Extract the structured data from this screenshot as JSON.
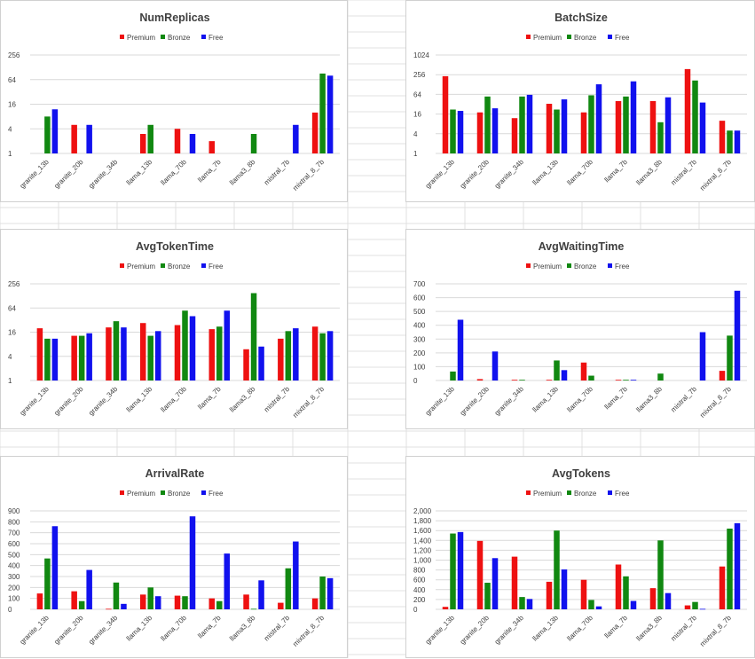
{
  "colors": {
    "premium": "#ee1111",
    "bronze": "#118811",
    "free": "#1111ee",
    "grid": "#d9d9d9",
    "text": "#404040"
  },
  "chart_data": [
    {
      "type": "bar",
      "title": "NumReplicas",
      "scale": "log2",
      "categories": [
        "granite_13b",
        "granite_20b",
        "granite_34b",
        "llama_13b",
        "llama_70b",
        "llama_7b",
        "llama3_8b",
        "mistral_7b",
        "mixtral_8_7b"
      ],
      "yticks": [
        "256",
        "64",
        "16",
        "4",
        "1"
      ],
      "ylim": [
        1,
        256
      ],
      "legend_position": "top-center",
      "grid": true,
      "series": [
        {
          "name": "Premium",
          "values": [
            null,
            5,
            null,
            3,
            4,
            2,
            null,
            null,
            10
          ]
        },
        {
          "name": "Bronze",
          "values": [
            8,
            null,
            null,
            5,
            null,
            null,
            3,
            null,
            90
          ]
        },
        {
          "name": "Free",
          "values": [
            12,
            5,
            null,
            null,
            3,
            null,
            null,
            5,
            80
          ]
        }
      ]
    },
    {
      "type": "bar",
      "title": "BatchSize",
      "scale": "log2",
      "categories": [
        "granite_13b",
        "granite_20b",
        "granite_34b",
        "llama_13b",
        "llama_70b",
        "llama_7b",
        "llama3_8b",
        "mistral_7b",
        "mixtral_8_7b"
      ],
      "yticks": [
        "1024",
        "256",
        "64",
        "16",
        "4",
        "1"
      ],
      "ylim": [
        1,
        1024
      ],
      "legend_position": "top-center",
      "grid": true,
      "series": [
        {
          "name": "Premium",
          "values": [
            230,
            18,
            12,
            33,
            18,
            40,
            40,
            380,
            10
          ]
        },
        {
          "name": "Bronze",
          "values": [
            22,
            55,
            55,
            22,
            60,
            55,
            9,
            170,
            5
          ]
        },
        {
          "name": "Free",
          "values": [
            20,
            24,
            62,
            45,
            130,
            160,
            52,
            36,
            5
          ]
        }
      ]
    },
    {
      "type": "bar",
      "title": "AvgTokenTime",
      "scale": "log2",
      "categories": [
        "granite_13b",
        "granite_20b",
        "granite_34b",
        "llama_13b",
        "llama_70b",
        "llama_7b",
        "llama3_8b",
        "mistral_7b",
        "mixtral_8_7b"
      ],
      "yticks": [
        "256",
        "64",
        "16",
        "4",
        "1"
      ],
      "ylim": [
        1,
        256
      ],
      "legend_position": "top-center",
      "grid": true,
      "series": [
        {
          "name": "Premium",
          "values": [
            20,
            13,
            21,
            27,
            24,
            19,
            6,
            11,
            22
          ]
        },
        {
          "name": "Bronze",
          "values": [
            11,
            13,
            30,
            13,
            55,
            22,
            150,
            17,
            15
          ]
        },
        {
          "name": "Free",
          "values": [
            11,
            15,
            21,
            17,
            40,
            55,
            7,
            20,
            17
          ]
        }
      ]
    },
    {
      "type": "bar",
      "title": "AvgWaitingTime",
      "scale": "linear",
      "categories": [
        "granite_13b",
        "granite_20b",
        "granite_34b",
        "llama_13b",
        "llama_70b",
        "llama_7b",
        "llama3_8b",
        "mistral_7b",
        "mixtral_8_7b"
      ],
      "yticks": [
        "700",
        "600",
        "500",
        "400",
        "300",
        "200",
        "100",
        "0"
      ],
      "ylim": [
        0,
        700
      ],
      "legend_position": "top-center",
      "grid": true,
      "series": [
        {
          "name": "Premium",
          "values": [
            null,
            10,
            5,
            5,
            130,
            5,
            null,
            null,
            70
          ]
        },
        {
          "name": "Bronze",
          "values": [
            65,
            null,
            5,
            145,
            35,
            5,
            50,
            null,
            325
          ]
        },
        {
          "name": "Free",
          "values": [
            440,
            210,
            null,
            75,
            null,
            5,
            null,
            350,
            650
          ]
        }
      ]
    },
    {
      "type": "bar",
      "title": "ArrivalRate",
      "scale": "linear",
      "categories": [
        "granite_13b",
        "granite_20b",
        "granite_34b",
        "llama_13b",
        "llama_70b",
        "llama_7b",
        "llama3_8b",
        "mistral_7b",
        "mixtral_8_7b"
      ],
      "yticks": [
        "900",
        "800",
        "700",
        "600",
        "500",
        "400",
        "300",
        "200",
        "100",
        "0"
      ],
      "ylim": [
        0,
        900
      ],
      "legend_position": "top-center",
      "grid": true,
      "series": [
        {
          "name": "Premium",
          "values": [
            145,
            165,
            5,
            135,
            125,
            100,
            135,
            60,
            100
          ]
        },
        {
          "name": "Bronze",
          "values": [
            465,
            75,
            245,
            200,
            120,
            75,
            5,
            375,
            300
          ]
        },
        {
          "name": "Free",
          "values": [
            760,
            360,
            50,
            120,
            850,
            510,
            265,
            620,
            285
          ]
        }
      ]
    },
    {
      "type": "bar",
      "title": "AvgTokens",
      "scale": "linear",
      "categories": [
        "granite_13b",
        "granite_20b",
        "granite_34b",
        "llama_13b",
        "llama_70b",
        "llama_7b",
        "llama3_8b",
        "mistral_7b",
        "mixtral_8_7b"
      ],
      "yticks": [
        "2,000",
        "1,800",
        "1,600",
        "1,400",
        "1,200",
        "1,000",
        "800",
        "600",
        "400",
        "200",
        "0"
      ],
      "ylim": [
        0,
        2000
      ],
      "legend_position": "top-center",
      "grid": true,
      "series": [
        {
          "name": "Premium",
          "values": [
            50,
            1390,
            1070,
            560,
            600,
            910,
            430,
            80,
            870
          ]
        },
        {
          "name": "Bronze",
          "values": [
            1540,
            540,
            250,
            1600,
            190,
            670,
            1400,
            150,
            1640
          ]
        },
        {
          "name": "Free",
          "values": [
            1570,
            1040,
            210,
            810,
            60,
            170,
            330,
            10,
            1750
          ]
        }
      ]
    }
  ]
}
